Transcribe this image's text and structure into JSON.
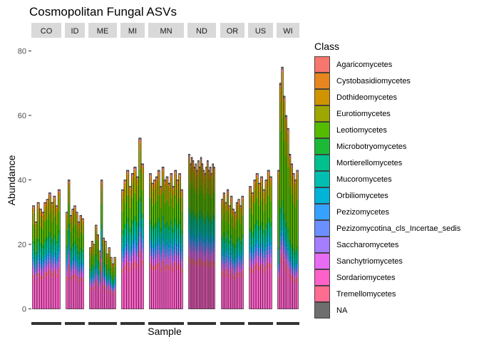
{
  "chart_data": {
    "type": "bar",
    "title": "Cosmopolitan Fungal ASVs",
    "xlabel": "Sample",
    "ylabel": "Abundance",
    "ylim": [
      0,
      80
    ],
    "yticks": [
      0,
      20,
      40,
      60,
      80
    ],
    "stacked": true,
    "faceted_by": "state",
    "legend": {
      "title": "Class",
      "position": "right",
      "entries": [
        {
          "name": "Agaricomycetes",
          "color": "#F8766D"
        },
        {
          "name": "Cystobasidiomycetes",
          "color": "#E7851E"
        },
        {
          "name": "Dothideomycetes",
          "color": "#D09400"
        },
        {
          "name": "Eurotiomycetes",
          "color": "#9DA700"
        },
        {
          "name": "Leotiomycetes",
          "color": "#55BB00"
        },
        {
          "name": "Microbotryomycetes",
          "color": "#1CB936"
        },
        {
          "name": "Mortierellomycetes",
          "color": "#00C08D"
        },
        {
          "name": "Mucoromycetes",
          "color": "#00BFB0"
        },
        {
          "name": "Orbiliomycetes",
          "color": "#00B4D8"
        },
        {
          "name": "Pezizomycetes",
          "color": "#35A2FF"
        },
        {
          "name": "Pezizomycotina_cls_Incertae_sedis",
          "color": "#6C8FFF"
        },
        {
          "name": "Saccharomycetes",
          "color": "#A57DFF"
        },
        {
          "name": "Sanchytriomycetes",
          "color": "#E76BF3"
        },
        {
          "name": "Sordariomycetes",
          "color": "#FF61C9"
        },
        {
          "name": "Tremellomycetes",
          "color": "#FF6C91"
        },
        {
          "name": "NA",
          "color": "#6E6E6E"
        }
      ]
    },
    "facets": [
      {
        "name": "CO",
        "totals": [
          32,
          27,
          33,
          31,
          30,
          33,
          34,
          36,
          33,
          35,
          32,
          37
        ]
      },
      {
        "name": "ID",
        "totals": [
          30,
          40,
          29,
          31,
          32,
          30,
          27,
          29,
          28
        ]
      },
      {
        "name": "ME",
        "totals": [
          19,
          21,
          20,
          26,
          23,
          18,
          40,
          22,
          21,
          17,
          19,
          16,
          14,
          16
        ]
      },
      {
        "name": "MI",
        "totals": [
          37,
          40,
          43,
          38,
          42,
          44,
          41,
          53,
          45
        ]
      },
      {
        "name": "MN",
        "totals": [
          42,
          39,
          40,
          41,
          43,
          38,
          44,
          40,
          41,
          39,
          42,
          38,
          43,
          40,
          42,
          37
        ]
      },
      {
        "name": "ND",
        "totals": [
          48,
          45,
          47,
          46,
          44,
          45,
          43,
          46,
          44,
          47,
          45,
          43,
          42,
          44,
          46,
          43,
          44,
          42,
          45,
          44
        ]
      },
      {
        "name": "OR",
        "totals": [
          34,
          36,
          33,
          37,
          32,
          35,
          31,
          30,
          33,
          34,
          32,
          35
        ]
      },
      {
        "name": "US",
        "totals": [
          38,
          36,
          40,
          42,
          39,
          41,
          37,
          40,
          43,
          41
        ]
      },
      {
        "name": "WI",
        "totals": [
          43,
          70,
          75,
          66,
          60,
          56,
          48,
          45,
          42,
          40,
          43
        ]
      }
    ]
  }
}
